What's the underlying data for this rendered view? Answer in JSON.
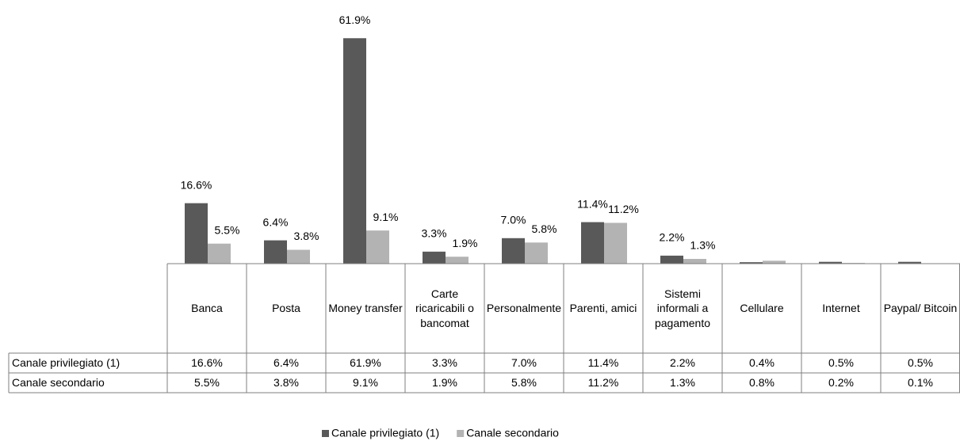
{
  "chart_data": {
    "type": "bar",
    "categories": [
      "Banca",
      "Posta",
      "Money transfer",
      "Carte ricaricabili o bancomat",
      "Personalmente",
      "Parenti, amici",
      "Sistemi informali a pagamento",
      "Cellulare",
      "Internet",
      "Paypal/ Bitcoin"
    ],
    "series": [
      {
        "name": "Canale privilegiato (1)",
        "color": "#595959",
        "values": [
          16.6,
          6.4,
          61.9,
          3.3,
          7.0,
          11.4,
          2.2,
          0.4,
          0.5,
          0.5
        ],
        "value_labels": [
          "16.6%",
          "6.4%",
          "61.9%",
          "3.3%",
          "7.0%",
          "11.4%",
          "2.2%",
          "0.4%",
          "0.5%",
          "0.5%"
        ]
      },
      {
        "name": "Canale secondario",
        "color": "#b3b3b3",
        "values": [
          5.5,
          3.8,
          9.1,
          1.9,
          5.8,
          11.2,
          1.3,
          0.8,
          0.2,
          0.1
        ],
        "value_labels": [
          "5.5%",
          "3.8%",
          "9.1%",
          "1.9%",
          "5.8%",
          "11.2%",
          "1.3%",
          "0.8%",
          "0.2%",
          "0.1%"
        ]
      }
    ],
    "chart_labels_shown": 7,
    "ylim": [
      0,
      70
    ]
  }
}
